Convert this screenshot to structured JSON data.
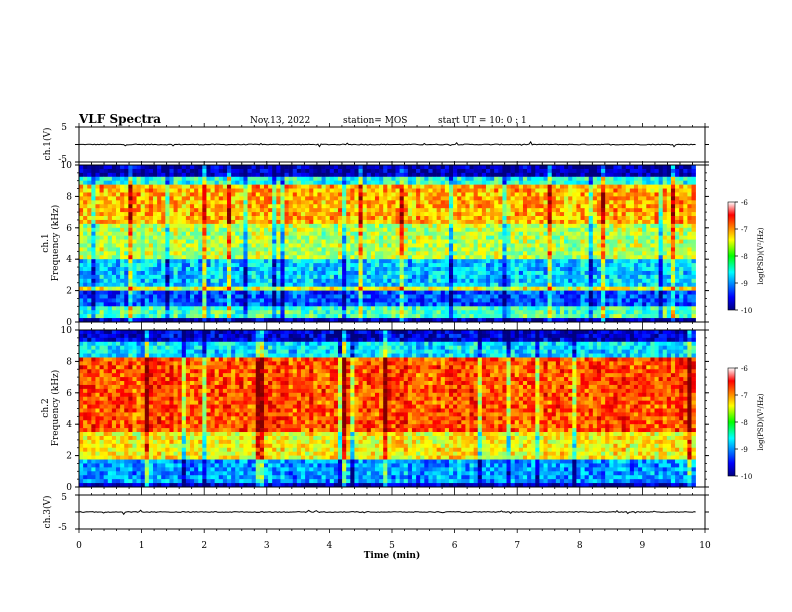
{
  "header": {
    "title": "VLF Spectra",
    "date": "Nov.13, 2022",
    "station": "station= MOS",
    "start": "start  UT =   10: 0  : 1"
  },
  "chart_data": {
    "type": "heatmap",
    "xlabel": "Time  (min)",
    "xlim": [
      0,
      10
    ],
    "xticks": [
      0,
      1,
      2,
      3,
      4,
      5,
      6,
      7,
      8,
      9,
      10
    ],
    "panels": [
      {
        "id": "ch1-waveform",
        "type": "line",
        "ylabel": "ch.1(V)",
        "ylim": [
          -5,
          5
        ],
        "yticks": [
          "5",
          "-5"
        ],
        "baseline": 0,
        "data_end_min": 9.85
      },
      {
        "id": "ch1-spectrogram",
        "type": "heatmap",
        "ylabel_channel": "ch.1",
        "ylabel": "Frequency  (kHz)",
        "ylim": [
          0,
          10
        ],
        "yticks": [
          0,
          2,
          4,
          6,
          8,
          10
        ],
        "data_end_min": 9.85,
        "colorbar": {
          "label": "log(PSD)(V²/Hz)",
          "range": [
            -10,
            -6
          ],
          "ticks": [
            "-6",
            "-7",
            "-8",
            "-9",
            "-10"
          ]
        },
        "bands_khz": [
          {
            "from": 9.3,
            "to": 10,
            "level": -9.8
          },
          {
            "from": 8.8,
            "to": 9.3,
            "level": -8.4
          },
          {
            "from": 6.2,
            "to": 8.8,
            "level": -7.2
          },
          {
            "from": 4.0,
            "to": 6.2,
            "level": -7.8
          },
          {
            "from": 2.2,
            "to": 4.0,
            "level": -8.7
          },
          {
            "from": 1.9,
            "to": 2.2,
            "level": -7.6
          },
          {
            "from": 1.0,
            "to": 1.9,
            "level": -9.2
          },
          {
            "from": 0.3,
            "to": 1.0,
            "level": -8.2
          },
          {
            "from": 0.0,
            "to": 0.3,
            "level": -9.8
          }
        ]
      },
      {
        "id": "ch2-spectrogram",
        "type": "heatmap",
        "ylabel_channel": "ch.2",
        "ylabel": "Frequency  (kHz)",
        "ylim": [
          0,
          10
        ],
        "yticks": [
          0,
          2,
          4,
          6,
          8,
          10
        ],
        "data_end_min": 9.85,
        "colorbar": {
          "label": "log(PSD)(V²/Hz)",
          "range": [
            -10,
            -6
          ],
          "ticks": [
            "-6",
            "-7",
            "-8",
            "-9",
            "-10"
          ]
        },
        "bands_khz": [
          {
            "from": 9.3,
            "to": 10,
            "level": -9.7
          },
          {
            "from": 8.3,
            "to": 9.3,
            "level": -8.6
          },
          {
            "from": 3.5,
            "to": 8.3,
            "level": -6.8
          },
          {
            "from": 1.8,
            "to": 3.5,
            "level": -7.5
          },
          {
            "from": 0.3,
            "to": 1.8,
            "level": -8.9
          },
          {
            "from": 0.0,
            "to": 0.3,
            "level": -9.8
          }
        ]
      },
      {
        "id": "ch3-waveform",
        "type": "line",
        "ylabel": "ch.3(V)",
        "ylim": [
          -5,
          5
        ],
        "yticks": [
          "5",
          "-5"
        ],
        "baseline": 0,
        "data_end_min": 9.85
      }
    ]
  }
}
